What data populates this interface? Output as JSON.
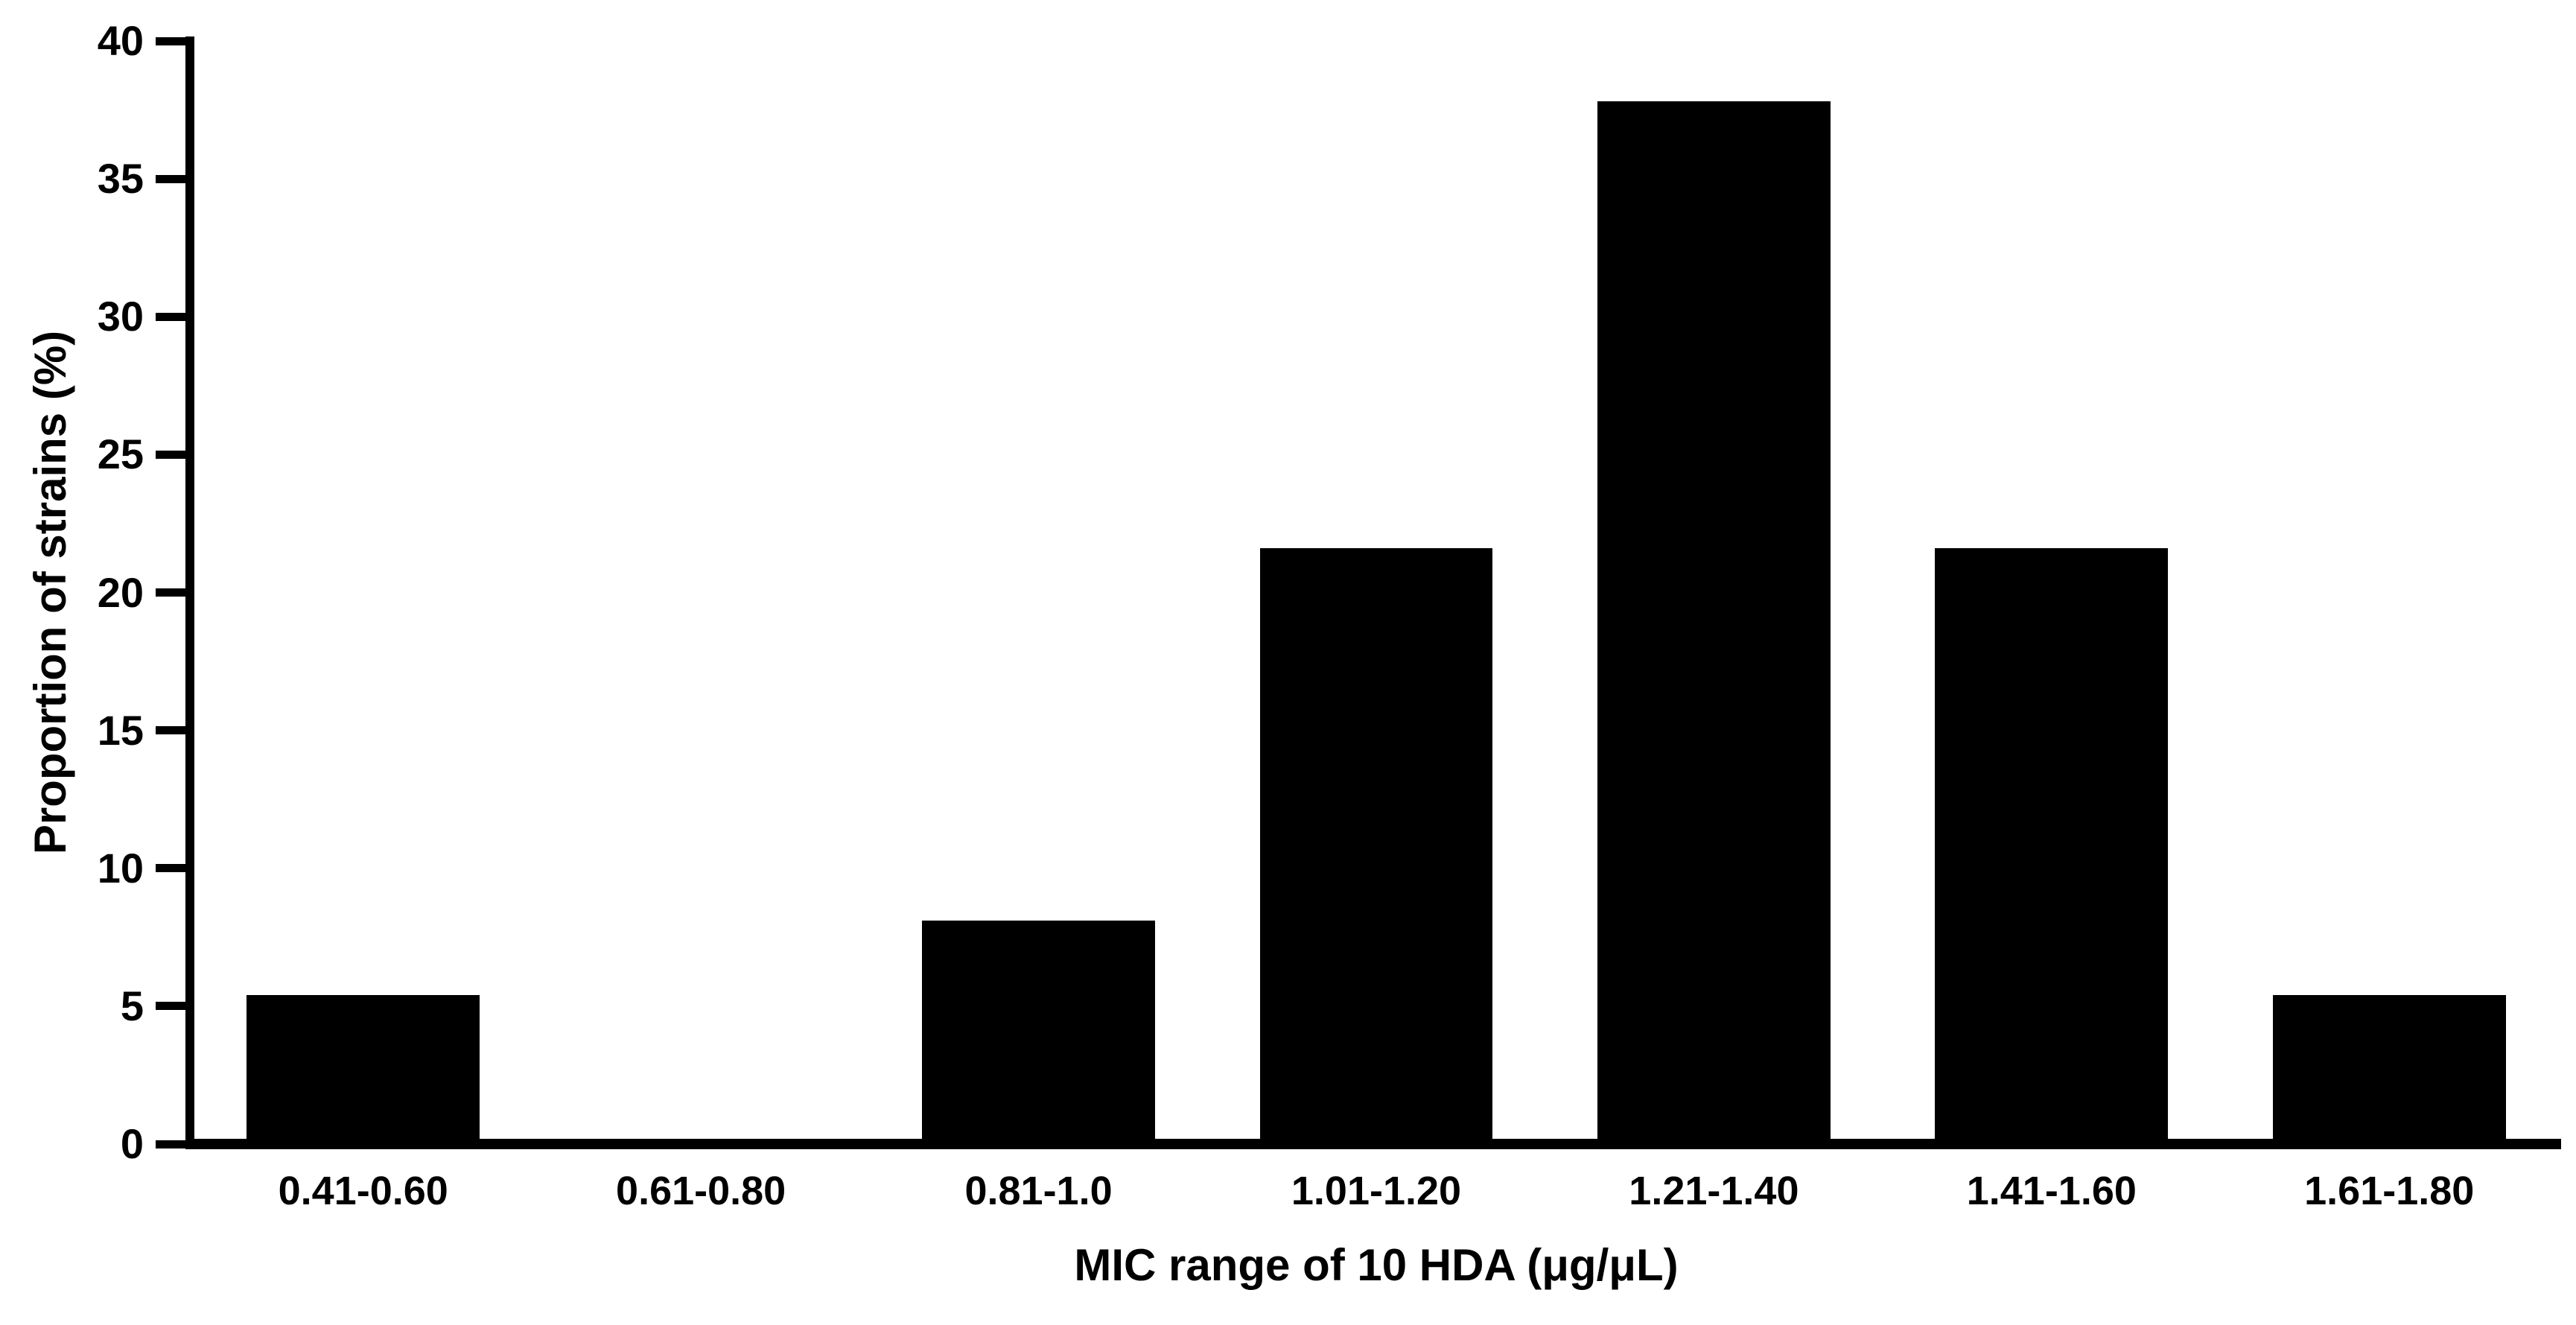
{
  "figure": {
    "background_color": "#ffffff",
    "bar_color": "#000000",
    "axis_color": "#000000",
    "text_color": "#000000"
  },
  "chart_data": {
    "type": "bar",
    "title": "",
    "categories": [
      "0.41-0.60",
      "0.61-0.80",
      "0.81-1.0",
      "1.01-1.20",
      "1.21-1.40",
      "1.41-1.60",
      "1.61-1.80"
    ],
    "values": [
      5.4,
      0,
      8.1,
      21.6,
      37.8,
      21.6,
      5.4
    ],
    "series_name": "Proportion of strains",
    "xlabel": "MIC range of 10 HDA (μg/μL)",
    "ylabel": "Proportion of strains (%)",
    "ylim": [
      0,
      40
    ],
    "yticks": [
      0,
      5,
      10,
      15,
      20,
      25,
      30,
      35,
      40
    ],
    "grid": false,
    "legend_position": "none",
    "bar_color": "#000000",
    "bar_width_fraction": 0.69
  }
}
